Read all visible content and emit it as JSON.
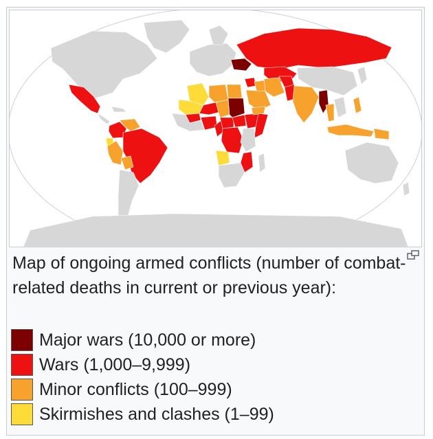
{
  "caption": "Map of ongoing armed conflicts (number of combat-related deaths in current or previous year):",
  "legend": [
    {
      "label": "Major wars (10,000 or more)",
      "color": "#7d0000"
    },
    {
      "label": "Wars (1,000–9,999)",
      "color": "#ee1111"
    },
    {
      "label": "Minor conflicts (100–999)",
      "color": "#f7a22d"
    },
    {
      "label": "Skirmishes and clashes (1–99)",
      "color": "#fddc3a"
    }
  ],
  "map": {
    "land_color": "#d7d7d7",
    "ocean_color": "#ffffff",
    "countries": {
      "Russia": "wars",
      "Ukraine": "major",
      "Mexico": "wars",
      "Colombia": "wars",
      "Venezuela": "minor",
      "Ecuador": "skirmish",
      "Brazil": "wars",
      "Peru": "minor",
      "Bolivia": "minor",
      "Mali": "skirmish",
      "Algeria": "skirmish",
      "Libya": "minor",
      "Egypt": "minor",
      "Niger": "wars",
      "Nigeria": "wars",
      "Burkina Faso": "wars",
      "Chad": "minor",
      "Sudan": "major",
      "South Sudan": "wars",
      "Ethiopia": "wars",
      "Somalia": "wars",
      "DR Congo": "wars",
      "Central African Republic": "wars",
      "Cameroon": "wars",
      "Mozambique": "wars",
      "Angola": "skirmish",
      "Syria": "wars",
      "Iraq": "minor",
      "Iran": "minor",
      "Saudi Arabia": "minor",
      "Yemen": "minor",
      "Afghanistan": "wars",
      "Pakistan": "wars",
      "India": "minor",
      "Myanmar": "major",
      "Thailand": "minor",
      "Philippines": "minor",
      "Indonesia": "minor",
      "Papua New Guinea": "minor",
      "Kazakhstan": "wars"
    }
  }
}
